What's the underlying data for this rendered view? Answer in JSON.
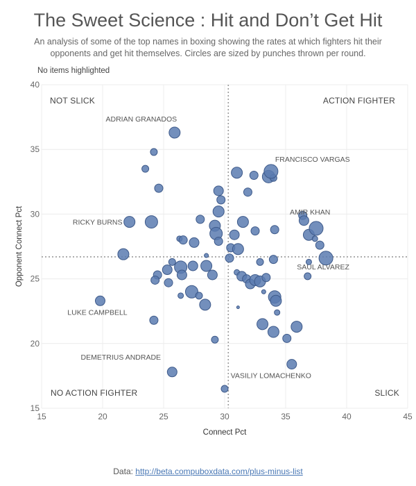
{
  "title": "The Sweet Science : Hit and Don’t Get Hit",
  "subtitle": "An analysis of some of the top names in boxing showing the rates at which fighters hit their opponents and get hit themselves. Circles are sized by punches thrown per round.",
  "highlight_note": "No items highlighted",
  "footer": {
    "prefix": "Data: ",
    "link_text": "http://beta.compuboxdata.com/plus-minus-list"
  },
  "colors": {
    "point_fill": "#5b7bb0",
    "point_stroke": "#3e5a8a",
    "reference": "#9a9a9a",
    "grid": "#ececec"
  },
  "chart_data": {
    "type": "scatter",
    "xlabel": "Connect Pct",
    "ylabel": "Opponent Connect Pct",
    "xlim": [
      15,
      45
    ],
    "ylim": [
      15,
      40
    ],
    "xticks": [
      15,
      20,
      25,
      30,
      35,
      40,
      45
    ],
    "yticks": [
      15,
      20,
      25,
      30,
      35,
      40
    ],
    "reference_lines": {
      "x": 30.3,
      "y": 26.7
    },
    "quadrant_labels": [
      {
        "text": "NOT SLICK",
        "position": "top-left"
      },
      {
        "text": "ACTION FIGHTER",
        "position": "top-right"
      },
      {
        "text": "NO ACTION FIGHTER",
        "position": "bottom-left"
      },
      {
        "text": "SLICK",
        "position": "bottom-right"
      }
    ],
    "labeled_points": [
      {
        "name": "ADRIAN GRANADOS",
        "x": 25.9,
        "y": 36.3,
        "size": 7
      },
      {
        "name": "FRANCISCO VARGAS",
        "x": 33.8,
        "y": 33.3,
        "size": 9
      },
      {
        "name": "AMIR KHAN",
        "x": 37.5,
        "y": 28.9,
        "size": 9
      },
      {
        "name": "RICKY BURNS",
        "x": 22.2,
        "y": 29.4,
        "size": 7
      },
      {
        "name": "SAUL ALVAREZ",
        "x": 38.3,
        "y": 26.6,
        "size": 9
      },
      {
        "name": "LUKE CAMPBELL",
        "x": 19.8,
        "y": 23.3,
        "size": 6
      },
      {
        "name": "DEMETRIUS ANDRADE",
        "x": 25.7,
        "y": 17.8,
        "size": 6
      },
      {
        "name": "VASILIY LOMACHENKO",
        "x": 35.5,
        "y": 18.4,
        "size": 6
      }
    ],
    "points": [
      {
        "x": 24.2,
        "y": 34.8,
        "size": 4
      },
      {
        "x": 23.5,
        "y": 33.5,
        "size": 4
      },
      {
        "x": 24.6,
        "y": 32.0,
        "size": 5
      },
      {
        "x": 24.0,
        "y": 29.4,
        "size": 8
      },
      {
        "x": 21.7,
        "y": 26.9,
        "size": 7
      },
      {
        "x": 29.5,
        "y": 31.8,
        "size": 6
      },
      {
        "x": 29.7,
        "y": 31.1,
        "size": 5
      },
      {
        "x": 29.5,
        "y": 30.2,
        "size": 7
      },
      {
        "x": 31.0,
        "y": 33.2,
        "size": 7
      },
      {
        "x": 32.4,
        "y": 33.0,
        "size": 5
      },
      {
        "x": 33.6,
        "y": 32.9,
        "size": 8
      },
      {
        "x": 34.0,
        "y": 32.8,
        "size": 4
      },
      {
        "x": 31.9,
        "y": 31.7,
        "size": 5
      },
      {
        "x": 28.0,
        "y": 29.6,
        "size": 5
      },
      {
        "x": 29.2,
        "y": 29.1,
        "size": 7
      },
      {
        "x": 29.3,
        "y": 28.5,
        "size": 8
      },
      {
        "x": 29.5,
        "y": 27.9,
        "size": 5
      },
      {
        "x": 31.5,
        "y": 29.4,
        "size": 7
      },
      {
        "x": 30.8,
        "y": 28.4,
        "size": 6
      },
      {
        "x": 32.5,
        "y": 28.7,
        "size": 5
      },
      {
        "x": 30.5,
        "y": 27.4,
        "size": 5
      },
      {
        "x": 31.1,
        "y": 27.3,
        "size": 7
      },
      {
        "x": 30.4,
        "y": 26.6,
        "size": 5
      },
      {
        "x": 26.3,
        "y": 28.1,
        "size": 3
      },
      {
        "x": 26.6,
        "y": 28.0,
        "size": 5
      },
      {
        "x": 27.5,
        "y": 27.8,
        "size": 6
      },
      {
        "x": 28.5,
        "y": 26.8,
        "size": 2
      },
      {
        "x": 34.1,
        "y": 28.8,
        "size": 5
      },
      {
        "x": 36.4,
        "y": 29.9,
        "size": 5
      },
      {
        "x": 36.5,
        "y": 29.5,
        "size": 6
      },
      {
        "x": 36.9,
        "y": 28.4,
        "size": 7
      },
      {
        "x": 37.4,
        "y": 28.1,
        "size": 3
      },
      {
        "x": 37.8,
        "y": 27.6,
        "size": 5
      },
      {
        "x": 25.7,
        "y": 26.3,
        "size": 4
      },
      {
        "x": 25.3,
        "y": 25.7,
        "size": 6
      },
      {
        "x": 26.4,
        "y": 25.9,
        "size": 8
      },
      {
        "x": 27.4,
        "y": 26.0,
        "size": 6
      },
      {
        "x": 28.5,
        "y": 26.0,
        "size": 7
      },
      {
        "x": 26.5,
        "y": 25.3,
        "size": 6
      },
      {
        "x": 24.5,
        "y": 25.3,
        "size": 5
      },
      {
        "x": 24.3,
        "y": 24.9,
        "size": 5
      },
      {
        "x": 25.4,
        "y": 24.7,
        "size": 5
      },
      {
        "x": 29.0,
        "y": 25.3,
        "size": 6
      },
      {
        "x": 27.3,
        "y": 24.0,
        "size": 8
      },
      {
        "x": 27.9,
        "y": 23.7,
        "size": 4
      },
      {
        "x": 26.4,
        "y": 23.7,
        "size": 3
      },
      {
        "x": 28.4,
        "y": 23.0,
        "size": 7
      },
      {
        "x": 31.0,
        "y": 25.5,
        "size": 3
      },
      {
        "x": 31.4,
        "y": 25.2,
        "size": 6
      },
      {
        "x": 31.8,
        "y": 25.0,
        "size": 5
      },
      {
        "x": 32.1,
        "y": 24.6,
        "size": 6
      },
      {
        "x": 32.5,
        "y": 24.9,
        "size": 7
      },
      {
        "x": 32.9,
        "y": 24.8,
        "size": 7
      },
      {
        "x": 33.4,
        "y": 25.1,
        "size": 5
      },
      {
        "x": 32.9,
        "y": 26.3,
        "size": 4
      },
      {
        "x": 34.0,
        "y": 26.5,
        "size": 5
      },
      {
        "x": 34.1,
        "y": 23.6,
        "size": 8
      },
      {
        "x": 34.2,
        "y": 23.3,
        "size": 7
      },
      {
        "x": 33.2,
        "y": 24.0,
        "size": 2
      },
      {
        "x": 31.1,
        "y": 22.8,
        "size": 1
      },
      {
        "x": 34.3,
        "y": 22.4,
        "size": 3
      },
      {
        "x": 33.1,
        "y": 21.5,
        "size": 7
      },
      {
        "x": 34.0,
        "y": 20.9,
        "size": 7
      },
      {
        "x": 35.9,
        "y": 21.3,
        "size": 7
      },
      {
        "x": 35.1,
        "y": 20.4,
        "size": 5
      },
      {
        "x": 29.2,
        "y": 20.3,
        "size": 4
      },
      {
        "x": 36.9,
        "y": 26.3,
        "size": 3
      },
      {
        "x": 36.8,
        "y": 25.2,
        "size": 4
      },
      {
        "x": 24.2,
        "y": 21.8,
        "size": 5
      },
      {
        "x": 30.0,
        "y": 16.5,
        "size": 4
      }
    ]
  }
}
